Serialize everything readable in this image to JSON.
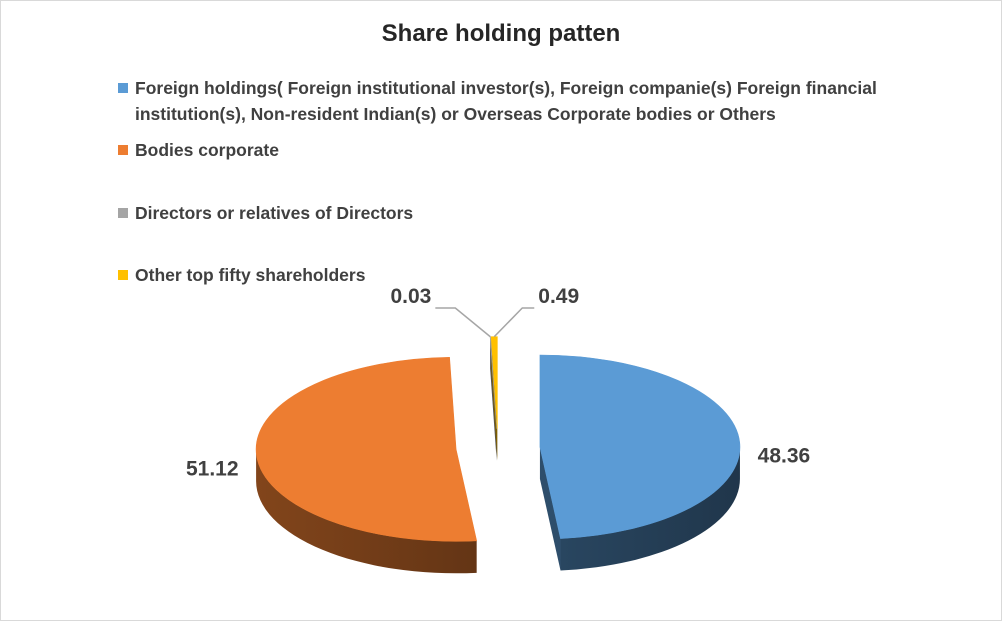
{
  "chart_data": {
    "type": "pie",
    "title": "Share holding patten",
    "legend_position": "top",
    "three_d": true,
    "exploded": true,
    "slices": [
      {
        "label": "Foreign holdings( Foreign institutional investor(s), Foreign companie(s) Foreign financial institution(s), Non-resident Indian(s) or Overseas Corporate bodies or Others",
        "value": 48.36,
        "display": "48.36",
        "color": "#5b9bd5"
      },
      {
        "label": "Bodies corporate",
        "value": 51.12,
        "display": "51.12",
        "color": "#ed7d31"
      },
      {
        "label": "Directors or relatives of Directors",
        "value": 0.03,
        "display": "0.03",
        "color": "#a5a5a5"
      },
      {
        "label": "Other top fifty shareholders",
        "value": 0.49,
        "display": "0.49",
        "color": "#ffc000"
      }
    ]
  }
}
